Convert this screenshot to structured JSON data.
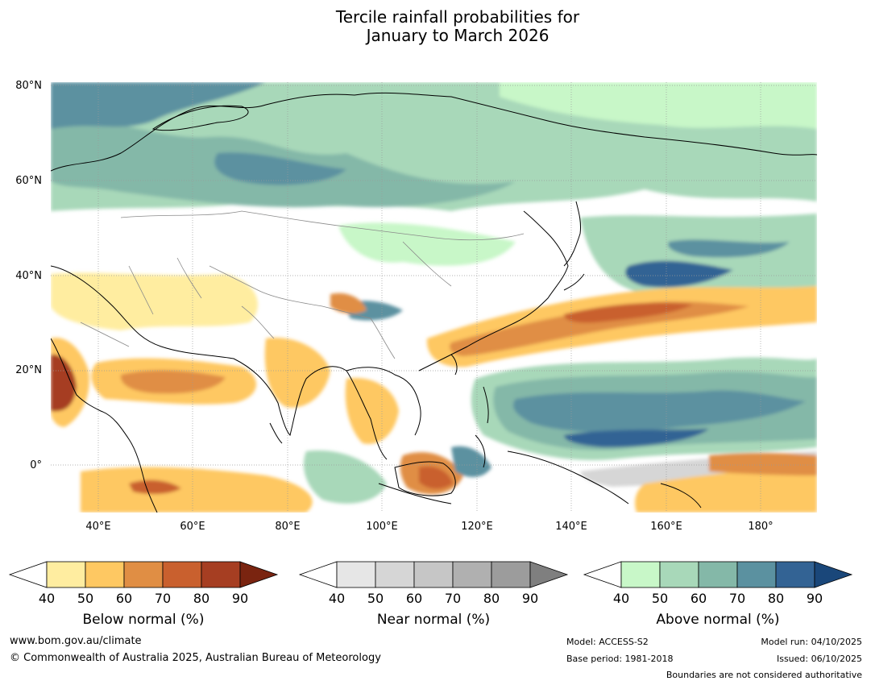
{
  "title": {
    "line1": "Tercile rainfall probabilities for",
    "line2": "January to March 2026"
  },
  "axes": {
    "lat_labels": [
      "80°N",
      "60°N",
      "40°N",
      "20°N",
      "0°"
    ],
    "lon_labels": [
      "40°E",
      "60°E",
      "80°E",
      "100°E",
      "120°E",
      "140°E",
      "160°E",
      "180°"
    ],
    "lat_range": [
      -10,
      80
    ],
    "lon_range": [
      30,
      192
    ]
  },
  "legends": [
    {
      "title": "Below normal (%)",
      "ticks": [
        "40",
        "50",
        "60",
        "70",
        "80",
        "90"
      ],
      "colors": [
        "#ffeda0",
        "#fec862",
        "#e08e44",
        "#c9602e",
        "#a63e22",
        "#7a2410"
      ]
    },
    {
      "title": "Near normal (%)",
      "ticks": [
        "40",
        "50",
        "60",
        "70",
        "80",
        "90"
      ],
      "colors": [
        "#e6e6e6",
        "#d6d6d6",
        "#c6c6c6",
        "#b0b0b0",
        "#9c9c9c",
        "#7f7f7f"
      ]
    },
    {
      "title": "Above normal (%)",
      "ticks": [
        "40",
        "50",
        "60",
        "70",
        "80",
        "90"
      ],
      "colors": [
        "#c8f7c8",
        "#a8d8b9",
        "#84b8a8",
        "#5b91a0",
        "#336394",
        "#1a477a"
      ]
    }
  ],
  "footer": {
    "website": "www.bom.gov.au/climate",
    "copyright": "© Commonwealth of Australia 2025, Australian Bureau of Meteorology",
    "model": "Model: ACCESS-S2",
    "base_period": "Base period: 1981-2018",
    "model_run": "Model run: 04/10/2025",
    "issued": "Issued: 06/10/2025",
    "disclaimer": "Boundaries are not considered authoritative"
  }
}
